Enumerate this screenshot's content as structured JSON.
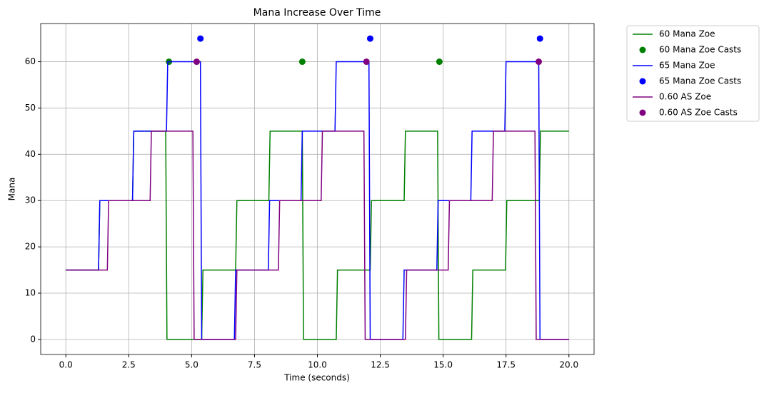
{
  "chart_data": {
    "type": "line",
    "title": "Mana Increase Over Time",
    "x_label": "Time (seconds)",
    "y_label": "Mana",
    "xlim": [
      -1,
      21
    ],
    "ylim": [
      -3.25,
      68.25
    ],
    "xticks": [
      {
        "value": 0,
        "label": "0.0"
      },
      2.5,
      {
        "value": 5,
        "label": "5.0"
      },
      7.5,
      {
        "value": 10,
        "label": "10.0"
      },
      12.5,
      {
        "value": 15,
        "label": "15.0"
      },
      17.5,
      {
        "value": 20,
        "label": "20.0"
      }
    ],
    "yticks": [
      0,
      10,
      20,
      30,
      40,
      50,
      60
    ],
    "grid": true,
    "legend": "outside upper right",
    "series": [
      {
        "name": "60 Mana Zoe",
        "type": "line",
        "color": "green",
        "x": [
          0,
          1.3,
          1.35,
          2.65,
          2.7,
          3.97,
          4.02,
          5.4,
          5.45,
          6.75,
          6.8,
          8.07,
          8.12,
          9.4,
          9.45,
          10.75,
          10.8,
          12.1,
          12.15,
          13.45,
          13.5,
          14.78,
          14.83,
          16.13,
          16.18,
          17.48,
          17.53,
          18.82,
          18.87,
          20
        ],
        "values": [
          15,
          15,
          30,
          30,
          45,
          45,
          0,
          0,
          15,
          15,
          30,
          30,
          45,
          45,
          0,
          0,
          15,
          15,
          30,
          30,
          45,
          45,
          0,
          0,
          15,
          15,
          30,
          30,
          45,
          45
        ]
      },
      {
        "name": "60 Mana Zoe Casts",
        "type": "scatter",
        "color": "green",
        "x": [
          4.1,
          9.4,
          14.85
        ],
        "values": [
          60,
          60,
          60
        ]
      },
      {
        "name": "65 Mana Zoe",
        "type": "line",
        "color": "blue",
        "x": [
          0,
          1.3,
          1.35,
          2.65,
          2.7,
          4.0,
          4.05,
          5.35,
          5.4,
          6.7,
          6.75,
          8.05,
          8.1,
          9.35,
          9.4,
          10.7,
          10.75,
          12.05,
          12.1,
          13.4,
          13.45,
          14.75,
          14.8,
          16.1,
          16.15,
          17.45,
          17.5,
          18.8,
          18.85,
          20
        ],
        "values": [
          15,
          15,
          30,
          30,
          45,
          45,
          60,
          60,
          0,
          0,
          15,
          15,
          30,
          30,
          45,
          45,
          60,
          60,
          0,
          0,
          15,
          15,
          30,
          30,
          45,
          45,
          60,
          60,
          0,
          0
        ]
      },
      {
        "name": "65 Mana Zoe Casts",
        "type": "scatter",
        "color": "blue",
        "x": [
          5.35,
          12.1,
          18.85
        ],
        "values": [
          65,
          65,
          65
        ]
      },
      {
        "name": "0.60 AS Zoe",
        "type": "line",
        "color": "purple",
        "x": [
          0,
          1.65,
          1.7,
          3.35,
          3.4,
          5.05,
          5.1,
          6.75,
          6.8,
          8.45,
          8.5,
          10.15,
          10.2,
          11.85,
          11.9,
          13.5,
          13.55,
          15.2,
          15.25,
          16.95,
          17.0,
          18.65,
          18.7,
          20
        ],
        "values": [
          15,
          15,
          30,
          30,
          45,
          45,
          0,
          0,
          15,
          15,
          30,
          30,
          45,
          45,
          0,
          0,
          15,
          15,
          30,
          30,
          45,
          45,
          0,
          0
        ]
      },
      {
        "name": "0.60 AS Zoe Casts",
        "type": "scatter",
        "color": "purple",
        "x": [
          5.2,
          11.95,
          18.8
        ],
        "values": [
          60,
          60,
          60
        ]
      }
    ]
  }
}
